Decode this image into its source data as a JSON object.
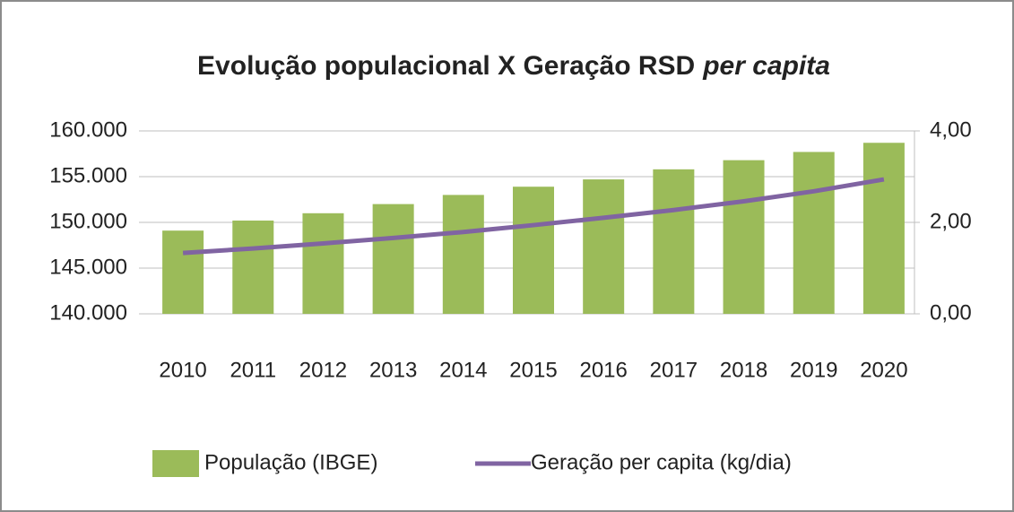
{
  "chart_data": {
    "type": "bar",
    "title": [
      "Evolução populacional X Geração RSD",
      "per capita"
    ],
    "categories": [
      "2010",
      "2011",
      "2012",
      "2013",
      "2014",
      "2015",
      "2016",
      "2017",
      "2018",
      "2019",
      "2020"
    ],
    "series": [
      {
        "name": "População (IBGE)",
        "type": "bar",
        "color": "#9bbb59",
        "values": [
          149100,
          150200,
          151000,
          152000,
          153000,
          153900,
          154700,
          155800,
          156800,
          157700,
          158700
        ]
      },
      {
        "name": "Geração per capita (kg/dia)",
        "type": "line",
        "axis": "y2",
        "color": "#8064a2",
        "values": [
          1.33,
          1.43,
          1.54,
          1.66,
          1.79,
          1.94,
          2.1,
          2.27,
          2.46,
          2.68,
          2.94
        ]
      }
    ],
    "ylim": [
      140000,
      160000
    ],
    "yticks": [
      {
        "value": 140000,
        "label": "140.000"
      },
      {
        "value": 145000,
        "label": "145.000"
      },
      {
        "value": 150000,
        "label": "150.000"
      },
      {
        "value": 155000,
        "label": "155.000"
      },
      {
        "value": 160000,
        "label": "160.000"
      }
    ],
    "y2lim": [
      0,
      4
    ],
    "y2ticks": [
      {
        "value": 0,
        "label": "0,00"
      },
      {
        "value": 2,
        "label": "2,00"
      },
      {
        "value": 4,
        "label": "4,00"
      }
    ],
    "grid": true,
    "legend": "bottom"
  }
}
